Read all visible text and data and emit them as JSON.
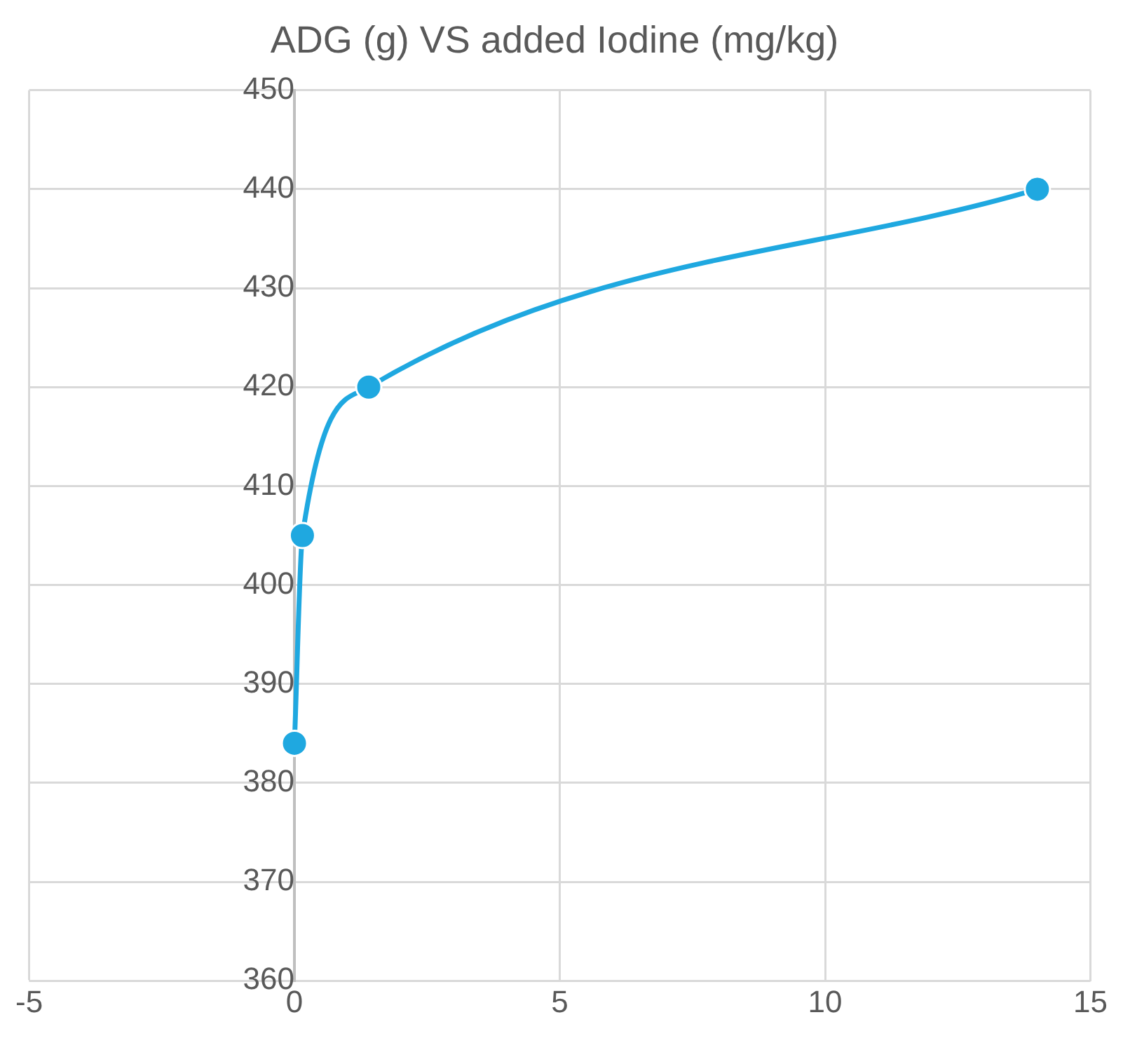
{
  "chart_data": {
    "type": "line",
    "title": "ADG (g) VS added Iodine (mg/kg)",
    "x": [
      0,
      0.15,
      1.4,
      14
    ],
    "series": [
      {
        "color": "#1fa8e0",
        "values": [
          384,
          405,
          420,
          440
        ]
      }
    ],
    "xlim": [
      -5,
      15
    ],
    "xticks": [
      -5,
      0,
      5,
      10,
      15
    ],
    "ylim": [
      360,
      450
    ],
    "yticks": [
      360,
      370,
      380,
      390,
      400,
      410,
      420,
      430,
      440,
      450
    ],
    "grid": true,
    "legend": false,
    "marker": "circle",
    "line_style": "solid"
  }
}
